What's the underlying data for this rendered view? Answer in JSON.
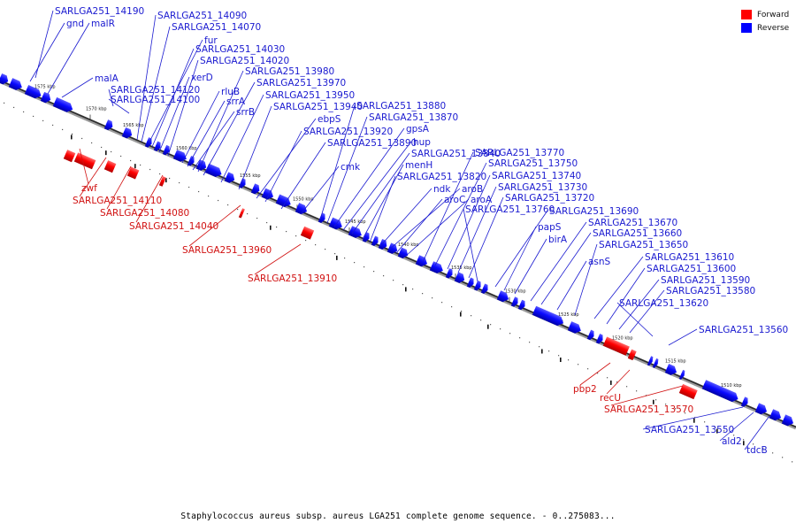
{
  "caption": "Staphylococcus aureus subsp. aureus LGA251 complete genome sequence. - 0..275083...",
  "legend": [
    {
      "label": "Forward",
      "color": "#ff0000"
    },
    {
      "label": "Reverse",
      "color": "#0000ff"
    }
  ],
  "ticks": [
    "1575 kbp",
    "1570 kbp",
    "1565 kbp",
    "1560 kbp",
    "1555 kbp",
    "1550 kbp",
    "1545 kbp",
    "1540 kbp",
    "1535 kbp",
    "1530 kbp",
    "1525 kbp",
    "1520 kbp",
    "1515 kbp",
    "1510 kbp"
  ],
  "reverse_labels": [
    "SARLGA251_14190",
    "gnd",
    "malR",
    "malA",
    "SARLGA251_14120",
    "SARLGA251_14100",
    "SARLGA251_14090",
    "SARLGA251_14070",
    "fur",
    "SARLGA251_14030",
    "xerD",
    "SARLGA251_14020",
    "rluB",
    "srrA",
    "srrB",
    "SARLGA251_13980",
    "SARLGA251_13970",
    "SARLGA251_13950",
    "SARLGA251_13940",
    "ebpS",
    "SARLGA251_13920",
    "SARLGA251_13890",
    "cmk",
    "SARLGA251_13880",
    "SARLGA251_13870",
    "gpsA",
    "hup",
    "SARLGA251_13840",
    "menH",
    "SARLGA251_13820",
    "ndk",
    "aroB",
    "aroC",
    "aroA",
    "SARLGA251_13770",
    "SARLGA251_13750",
    "SARLGA251_13740",
    "SARLGA251_13730",
    "SARLGA251_13720",
    "SARLGA251_13760",
    "SARLGA251_13690",
    "papS",
    "birA",
    "SARLGA251_13670",
    "SARLGA251_13660",
    "asnS",
    "SARLGA251_13650",
    "SARLGA251_13610",
    "SARLGA251_13600",
    "SARLGA251_13590",
    "SARLGA251_13580",
    "SARLGA251_13620",
    "SARLGA251_13560",
    "SARLGA251_13550",
    "ald2",
    "tdcB"
  ],
  "forward_labels": [
    "zwf",
    "SARLGA251_14110",
    "SARLGA251_14080",
    "SARLGA251_14040",
    "SARLGA251_13960",
    "SARLGA251_13910",
    "pbp2",
    "recU",
    "SARLGA251_13570"
  ]
}
